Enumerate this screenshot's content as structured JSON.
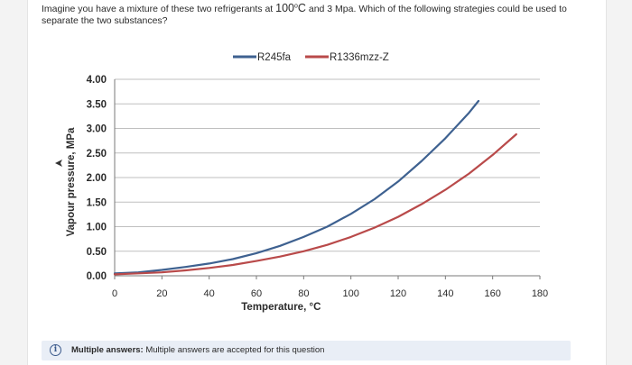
{
  "question": {
    "part1": "Imagine you have a mixture of these two refrigerants at ",
    "temp_value": "100",
    "temp_deg": "o",
    "temp_unit": "C",
    "part2": " and ",
    "pressure": "3 Mpa",
    "part3": ". Which of the following strategies could be used to",
    "line2": "separate the two substances?"
  },
  "info": {
    "label": "Multiple answers:",
    "text": "Multiple answers are accepted for this question",
    "icon": "info-icon"
  },
  "colors": {
    "R245fa": "#3e6190",
    "R1336mzz-Z": "#b94a4a",
    "grid": "#bfbfbf",
    "axis": "#7a7a7a",
    "info_bg": "#e9eef6"
  },
  "chart_data": {
    "type": "line",
    "xlabel": "Temperature, °C",
    "ylabel": "Vapour pressure, MPa",
    "xlim": [
      0,
      180
    ],
    "ylim": [
      0,
      4.0
    ],
    "x_ticks": [
      "0",
      "20",
      "40",
      "60",
      "80",
      "100",
      "120",
      "140",
      "160",
      "180"
    ],
    "y_ticks": [
      "0.00",
      "0.50",
      "1.00",
      "1.50",
      "2.00",
      "2.50",
      "3.00",
      "3.50",
      "4.00"
    ],
    "grid": "horizontal",
    "legend_position": "top-center",
    "series": [
      {
        "name": "R245fa",
        "x": [
          0,
          10,
          20,
          30,
          40,
          50,
          60,
          70,
          80,
          90,
          100,
          110,
          120,
          130,
          140,
          150,
          154
        ],
        "y": [
          0.05,
          0.07,
          0.12,
          0.18,
          0.25,
          0.34,
          0.46,
          0.61,
          0.79,
          1.0,
          1.26,
          1.56,
          1.92,
          2.34,
          2.8,
          3.32,
          3.56
        ]
      },
      {
        "name": "R1336mzz-Z",
        "x": [
          0,
          10,
          20,
          30,
          40,
          50,
          60,
          70,
          80,
          90,
          100,
          110,
          120,
          130,
          140,
          150,
          160,
          170
        ],
        "y": [
          0.03,
          0.05,
          0.07,
          0.11,
          0.16,
          0.22,
          0.3,
          0.39,
          0.5,
          0.63,
          0.79,
          0.98,
          1.2,
          1.46,
          1.75,
          2.08,
          2.46,
          2.88
        ]
      }
    ]
  }
}
